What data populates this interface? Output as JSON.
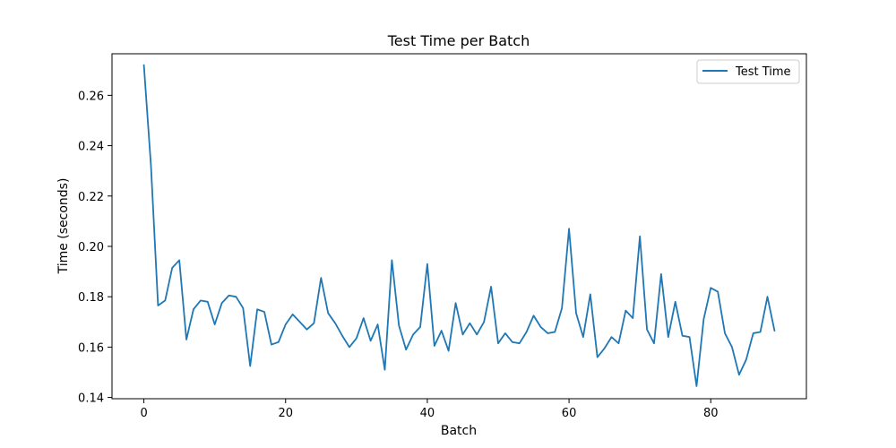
{
  "chart_data": {
    "type": "line",
    "title": "Test Time per Batch",
    "xlabel": "Batch",
    "ylabel": "Time (seconds)",
    "xlim": [
      -4.5,
      93.5
    ],
    "ylim": [
      0.1395,
      0.2765
    ],
    "xticks": [
      0,
      20,
      40,
      60,
      80
    ],
    "xtick_labels": [
      "0",
      "20",
      "40",
      "60",
      "80"
    ],
    "yticks": [
      0.14,
      0.16,
      0.18,
      0.2,
      0.22,
      0.24,
      0.26
    ],
    "ytick_labels": [
      "0.14",
      "0.16",
      "0.18",
      "0.20",
      "0.22",
      "0.24",
      "0.26"
    ],
    "grid": false,
    "legend_position": "top-right",
    "series": [
      {
        "name": "Test Time",
        "color": "#1f77b4",
        "x": [
          0,
          1,
          2,
          3,
          4,
          5,
          6,
          7,
          8,
          9,
          10,
          11,
          12,
          13,
          14,
          15,
          16,
          17,
          18,
          19,
          20,
          21,
          22,
          23,
          24,
          25,
          26,
          27,
          28,
          29,
          30,
          31,
          32,
          33,
          34,
          35,
          36,
          37,
          38,
          39,
          40,
          41,
          42,
          43,
          44,
          45,
          46,
          47,
          48,
          49,
          50,
          51,
          52,
          53,
          54,
          55,
          56,
          57,
          58,
          59,
          60,
          61,
          62,
          63,
          64,
          65,
          66,
          67,
          68,
          69,
          70,
          71,
          72,
          73,
          74,
          75,
          76,
          77,
          78,
          79,
          80,
          81,
          82,
          83,
          84,
          85,
          86,
          87,
          88,
          89
        ],
        "values": [
          0.272,
          0.232,
          0.1765,
          0.1785,
          0.1915,
          0.1945,
          0.163,
          0.175,
          0.1785,
          0.178,
          0.169,
          0.1775,
          0.1805,
          0.18,
          0.1755,
          0.1525,
          0.175,
          0.174,
          0.161,
          0.162,
          0.169,
          0.173,
          0.17,
          0.167,
          0.1695,
          0.1875,
          0.1735,
          0.1695,
          0.1645,
          0.16,
          0.1635,
          0.1715,
          0.1625,
          0.169,
          0.151,
          0.1945,
          0.1685,
          0.159,
          0.165,
          0.168,
          0.193,
          0.1605,
          0.1665,
          0.1585,
          0.1775,
          0.165,
          0.1695,
          0.165,
          0.17,
          0.184,
          0.1615,
          0.1655,
          0.162,
          0.1615,
          0.166,
          0.1725,
          0.168,
          0.1655,
          0.166,
          0.1755,
          0.207,
          0.1735,
          0.164,
          0.181,
          0.156,
          0.1595,
          0.164,
          0.1615,
          0.1745,
          0.1715,
          0.204,
          0.167,
          0.1615,
          0.189,
          0.164,
          0.178,
          0.1645,
          0.164,
          0.1445,
          0.171,
          0.1835,
          0.182,
          0.1655,
          0.16,
          0.149,
          0.155,
          0.1655,
          0.166,
          0.18,
          0.1665
        ]
      }
    ]
  }
}
